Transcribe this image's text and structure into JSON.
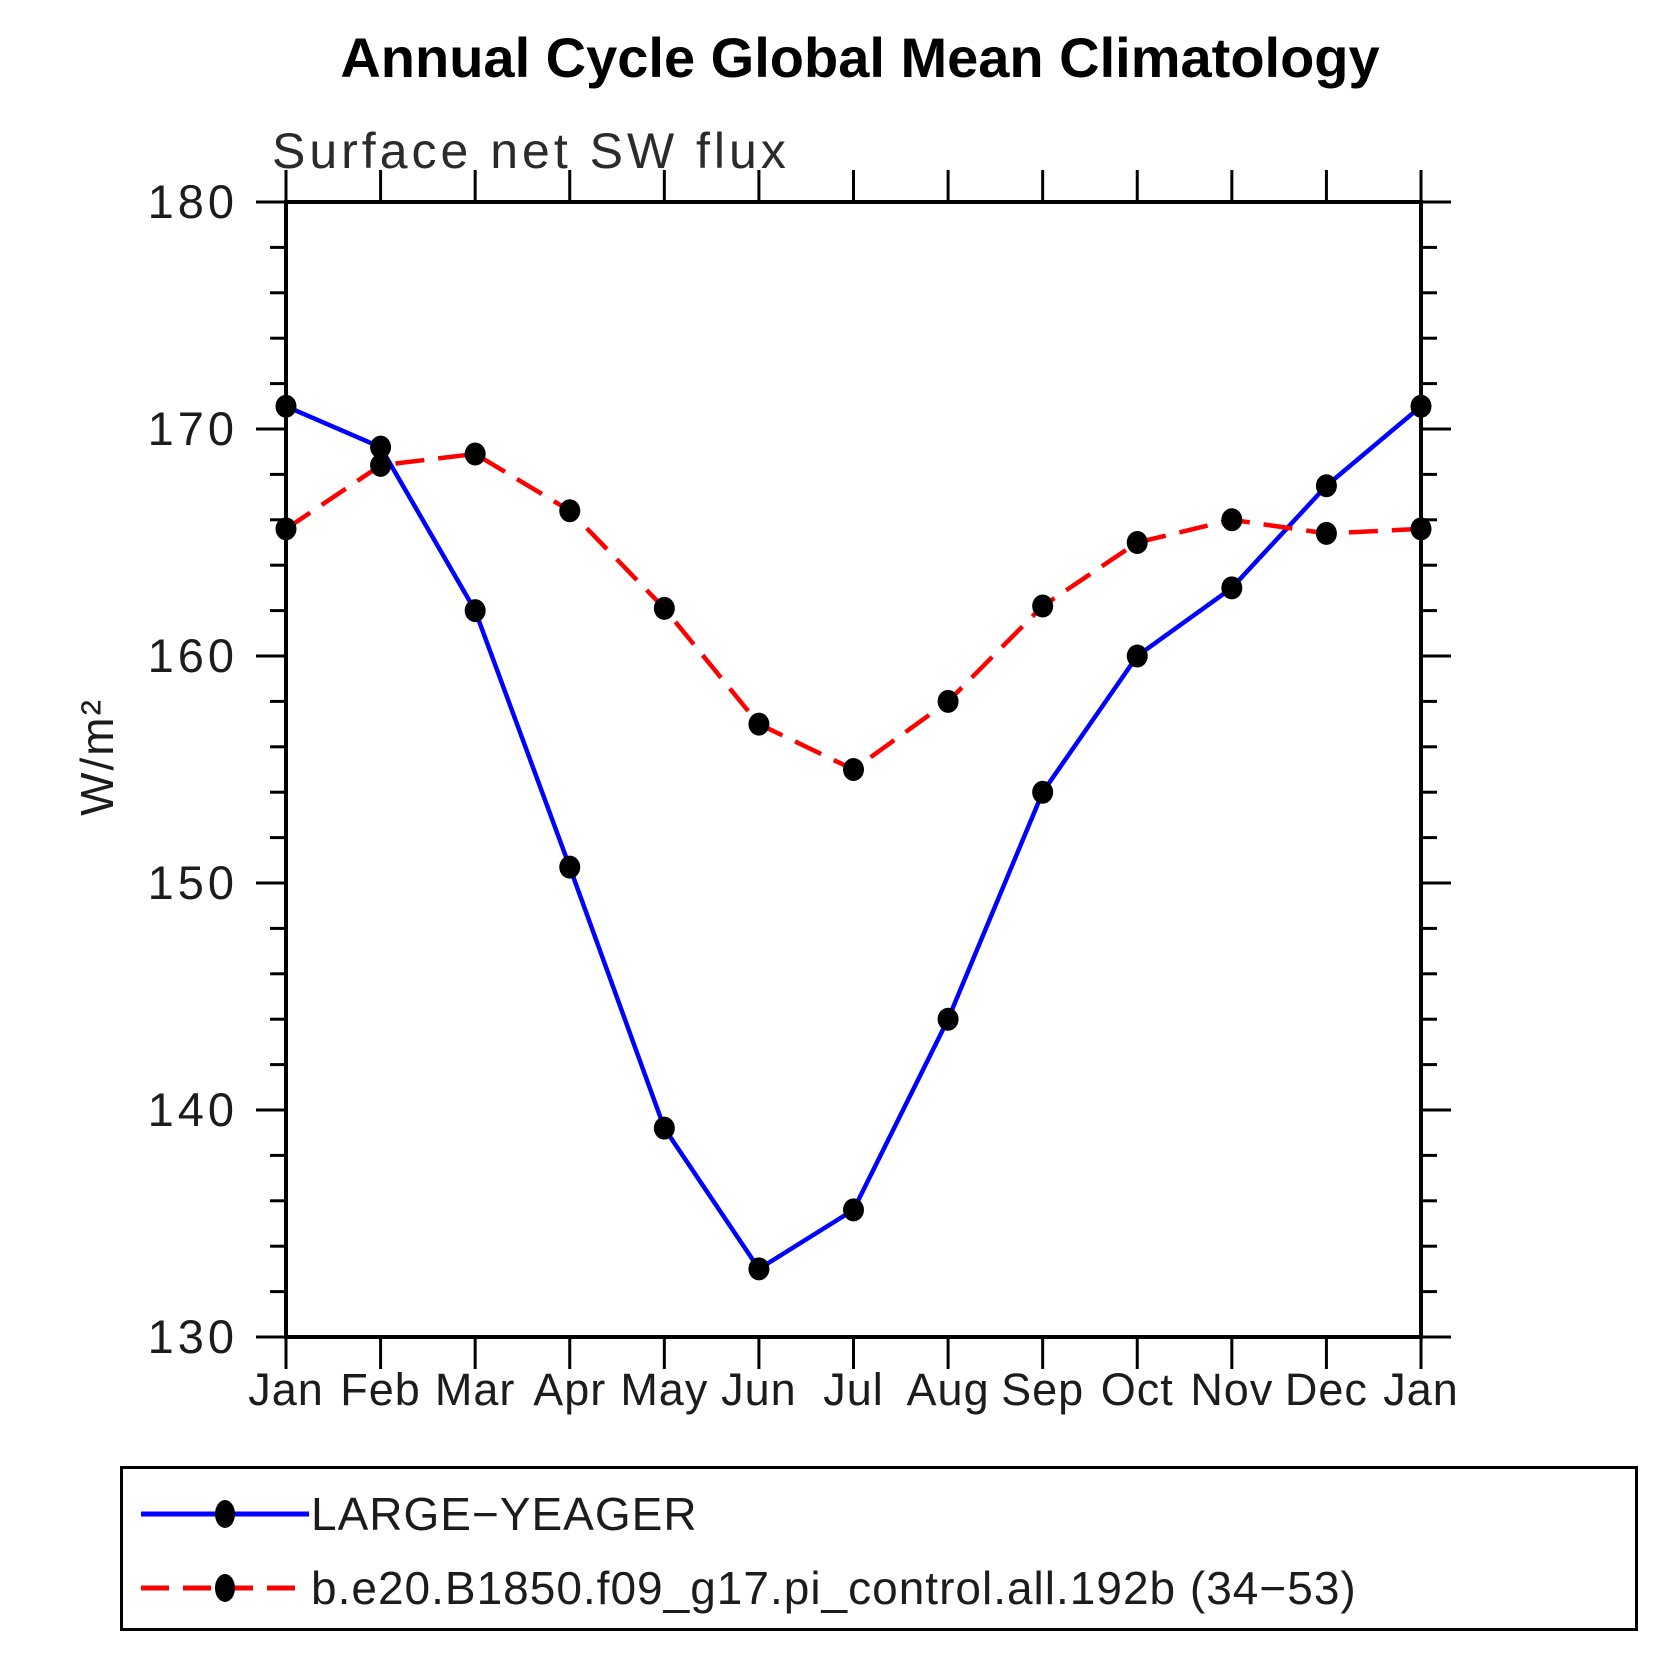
{
  "chart": {
    "title": "Annual Cycle Global Mean Climatology",
    "subtitle": "Surface net SW flux",
    "ylabel": "W/m²"
  },
  "chart_data": {
    "type": "line",
    "title": "Annual Cycle Global Mean Climatology",
    "subtitle": "Surface net SW flux",
    "xlabel": "",
    "ylabel": "W/m²",
    "x_categories": [
      "Jan",
      "Feb",
      "Mar",
      "Apr",
      "May",
      "Jun",
      "Jul",
      "Aug",
      "Sep",
      "Oct",
      "Nov",
      "Dec",
      "Jan"
    ],
    "ylim": [
      130,
      180
    ],
    "ytick_labels": [
      "180",
      "170",
      "160",
      "150",
      "140",
      "130"
    ],
    "ytick_values": [
      180,
      170,
      160,
      150,
      140,
      130
    ],
    "ytick_minor_step": 2,
    "grid": false,
    "legend_position": "bottom",
    "axis_color": "#000000",
    "marker_shape": "filled-circle",
    "marker_color": "#000000",
    "series": [
      {
        "name": "LARGE-YEAGER",
        "color": "#0000ff",
        "line_style": "solid",
        "values": [
          171.0,
          169.2,
          162.0,
          150.7,
          139.2,
          133.0,
          135.6,
          144.0,
          154.0,
          160.0,
          163.0,
          167.5,
          171.0
        ]
      },
      {
        "name": "b.e20.B1850.f09_g17.pi_control.all.192b (34-53)",
        "color": "#ff0000",
        "line_style": "dashed",
        "values": [
          165.6,
          168.4,
          168.9,
          166.4,
          162.1,
          157.0,
          155.0,
          158.0,
          162.2,
          165.0,
          166.0,
          165.4,
          165.6
        ]
      }
    ]
  },
  "legend": {
    "entries": [
      {
        "label": "LARGE−YEAGER"
      },
      {
        "label": "b.e20.B1850.f09_g17.pi_control.all.192b (34−53)"
      }
    ]
  }
}
